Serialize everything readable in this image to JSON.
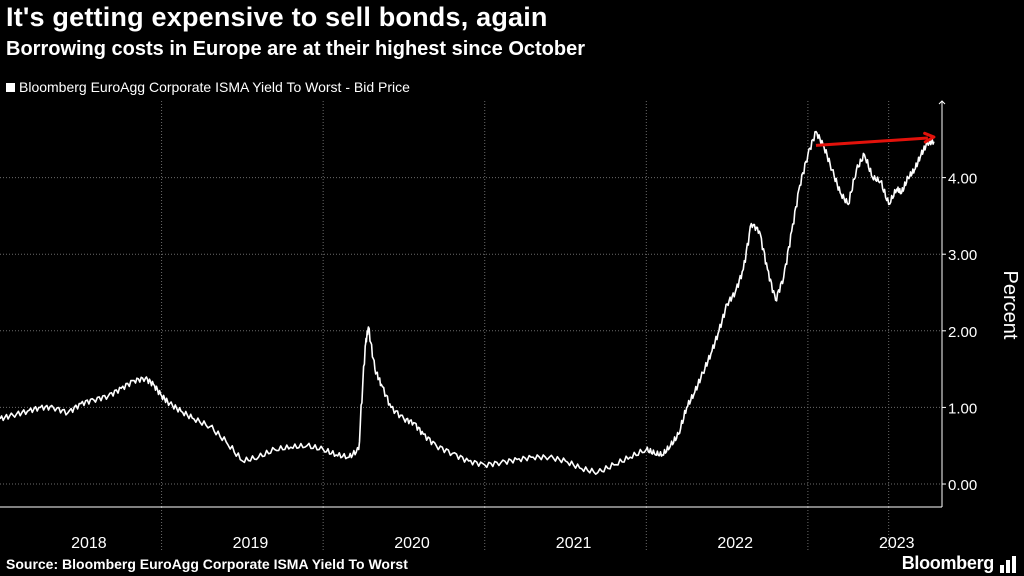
{
  "header": {
    "title": "It's getting expensive to sell bonds, again",
    "subtitle": "Borrowing costs in Europe are at their highest since October"
  },
  "legend": {
    "label": "Bloomberg EuroAgg Corporate ISMA Yield To Worst - Bid Price"
  },
  "footer": {
    "source": "Source: Bloomberg EuroAgg Corporate ISMA Yield To Worst",
    "brand": "Bloomberg"
  },
  "colors": {
    "background": "#000000",
    "line": "#ffffff",
    "grid": "#6b6b6b",
    "arrow": "#e3120b"
  },
  "chart_data": {
    "type": "line",
    "title": "It's getting expensive to sell bonds, again",
    "subtitle": "Borrowing costs in Europe are at their highest since October",
    "xlabel": "",
    "ylabel": "Percent",
    "ylim": [
      -0.3,
      5.0
    ],
    "yticks": [
      0,
      1,
      2,
      3,
      4
    ],
    "ytick_labels": [
      "0.00",
      "1.00",
      "2.00",
      "3.00",
      "4.00"
    ],
    "y_axis_side": "right",
    "grid": true,
    "legend_position": "top-left",
    "xlim": [
      2017.5,
      2023.33
    ],
    "xticks": [
      {
        "label": "2018",
        "center": 2018.05
      },
      {
        "label": "2019",
        "center": 2019.05
      },
      {
        "label": "2020",
        "center": 2020.05
      },
      {
        "label": "2021",
        "center": 2021.05
      },
      {
        "label": "2022",
        "center": 2022.05
      },
      {
        "label": "2023",
        "center": 2023.05
      }
    ],
    "year_boundaries": [
      2018.5,
      2019.5,
      2020.5,
      2021.5,
      2022.5,
      2023.0
    ],
    "series": [
      {
        "name": "Bloomberg EuroAgg Corporate ISMA Yield To Worst - Bid Price",
        "x": [
          2017.5,
          2017.58,
          2017.67,
          2017.75,
          2017.83,
          2017.92,
          2018.0,
          2018.08,
          2018.17,
          2018.25,
          2018.33,
          2018.4,
          2018.45,
          2018.5,
          2018.55,
          2018.62,
          2018.7,
          2018.8,
          2018.9,
          2019.0,
          2019.1,
          2019.2,
          2019.3,
          2019.4,
          2019.5,
          2019.58,
          2019.66,
          2019.72,
          2019.76,
          2019.78,
          2019.82,
          2019.86,
          2019.92,
          2020.0,
          2020.06,
          2020.12,
          2020.2,
          2020.3,
          2020.4,
          2020.5,
          2020.6,
          2020.7,
          2020.8,
          2020.9,
          2021.0,
          2021.1,
          2021.2,
          2021.3,
          2021.4,
          2021.5,
          2021.55,
          2021.6,
          2021.65,
          2021.7,
          2021.75,
          2021.8,
          2021.85,
          2021.9,
          2021.95,
          2022.0,
          2022.05,
          2022.1,
          2022.15,
          2022.2,
          2022.25,
          2022.3,
          2022.35,
          2022.4,
          2022.45,
          2022.5,
          2022.55,
          2022.6,
          2022.65,
          2022.7,
          2022.75,
          2022.8,
          2022.85,
          2022.9,
          2022.95,
          2023.0,
          2023.05,
          2023.08,
          2023.12,
          2023.16,
          2023.2,
          2023.24,
          2023.28
        ],
        "y": [
          0.85,
          0.9,
          0.95,
          1.0,
          1.0,
          0.93,
          1.05,
          1.1,
          1.15,
          1.25,
          1.35,
          1.38,
          1.3,
          1.15,
          1.05,
          0.95,
          0.85,
          0.75,
          0.55,
          0.3,
          0.35,
          0.45,
          0.48,
          0.5,
          0.45,
          0.38,
          0.35,
          0.45,
          1.8,
          2.05,
          1.5,
          1.3,
          1.0,
          0.85,
          0.8,
          0.65,
          0.5,
          0.4,
          0.3,
          0.25,
          0.28,
          0.32,
          0.35,
          0.35,
          0.3,
          0.2,
          0.15,
          0.25,
          0.35,
          0.45,
          0.4,
          0.38,
          0.5,
          0.65,
          1.0,
          1.2,
          1.45,
          1.7,
          2.0,
          2.35,
          2.5,
          2.8,
          3.4,
          3.3,
          2.8,
          2.4,
          2.7,
          3.3,
          3.9,
          4.3,
          4.6,
          4.4,
          4.1,
          3.8,
          3.65,
          4.1,
          4.3,
          4.0,
          3.95,
          3.65,
          3.85,
          3.8,
          4.0,
          4.1,
          4.3,
          4.45,
          4.47
        ]
      }
    ],
    "annotations": [
      {
        "type": "arrow",
        "color": "red",
        "from": [
          2022.55,
          4.42
        ],
        "to": [
          2023.28,
          4.53
        ]
      }
    ]
  }
}
